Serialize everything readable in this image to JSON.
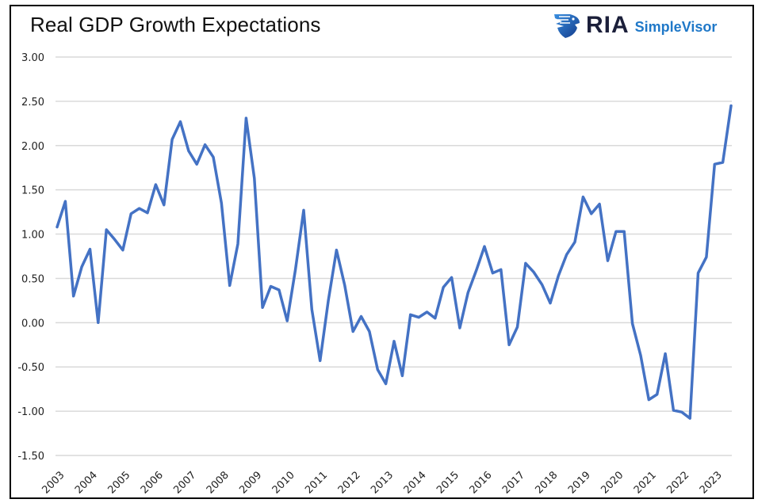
{
  "header": {
    "title": "Real GDP Growth Expectations",
    "logo_brand": "RIA",
    "logo_product": "SimpleVisor",
    "logo_icon": "eagle-shield-icon"
  },
  "colors": {
    "line": "#4472C4",
    "grid": "#D9D9D9",
    "logo_dark": "#1b1f3a",
    "logo_blue": "#1f78c8"
  },
  "chart_data": {
    "type": "line",
    "title": "Real GDP Growth Expectations",
    "xlabel": "",
    "ylabel": "",
    "ylim": [
      -1.5,
      3.0
    ],
    "yticks": [
      3.0,
      2.5,
      2.0,
      1.5,
      1.0,
      0.5,
      0.0,
      -0.5,
      -1.0,
      -1.5
    ],
    "ytick_labels": [
      "3.00",
      "2.50",
      "2.00",
      "1.50",
      "1.00",
      "0.50",
      "0.00",
      "-0.50",
      "-1.00",
      "-1.50"
    ],
    "xtick_labels": [
      "2003",
      "2004",
      "2005",
      "2006",
      "2007",
      "2008",
      "2009",
      "2010",
      "2011",
      "2012",
      "2013",
      "2014",
      "2015",
      "2016",
      "2017",
      "2018",
      "2019",
      "2020",
      "2021",
      "2022",
      "2023"
    ],
    "grid": true,
    "legend": "none",
    "frequency": "quarterly",
    "series": [
      {
        "name": "Real GDP Growth Expectations",
        "values": [
          1.08,
          1.37,
          0.3,
          0.63,
          0.83,
          0.0,
          1.05,
          0.94,
          0.82,
          1.23,
          1.29,
          1.24,
          1.56,
          1.33,
          2.07,
          2.27,
          1.94,
          1.79,
          2.01,
          1.87,
          1.35,
          0.42,
          0.89,
          2.31,
          1.63,
          0.17,
          0.41,
          0.37,
          0.02,
          0.6,
          1.27,
          0.15,
          -0.43,
          0.25,
          0.82,
          0.42,
          -0.1,
          0.07,
          -0.1,
          -0.53,
          -0.69,
          -0.21,
          -0.6,
          0.09,
          0.06,
          0.12,
          0.05,
          0.4,
          0.51,
          -0.06,
          0.34,
          0.59,
          0.86,
          0.56,
          0.6,
          -0.25,
          -0.05,
          0.67,
          0.57,
          0.43,
          0.22,
          0.53,
          0.77,
          0.91,
          1.42,
          1.23,
          1.34,
          0.7,
          1.03,
          1.03,
          -0.01,
          -0.37,
          -0.87,
          -0.81,
          -0.35,
          -0.99,
          -1.01,
          -1.08,
          0.56,
          0.74,
          1.79,
          1.81,
          2.45
        ]
      }
    ]
  }
}
